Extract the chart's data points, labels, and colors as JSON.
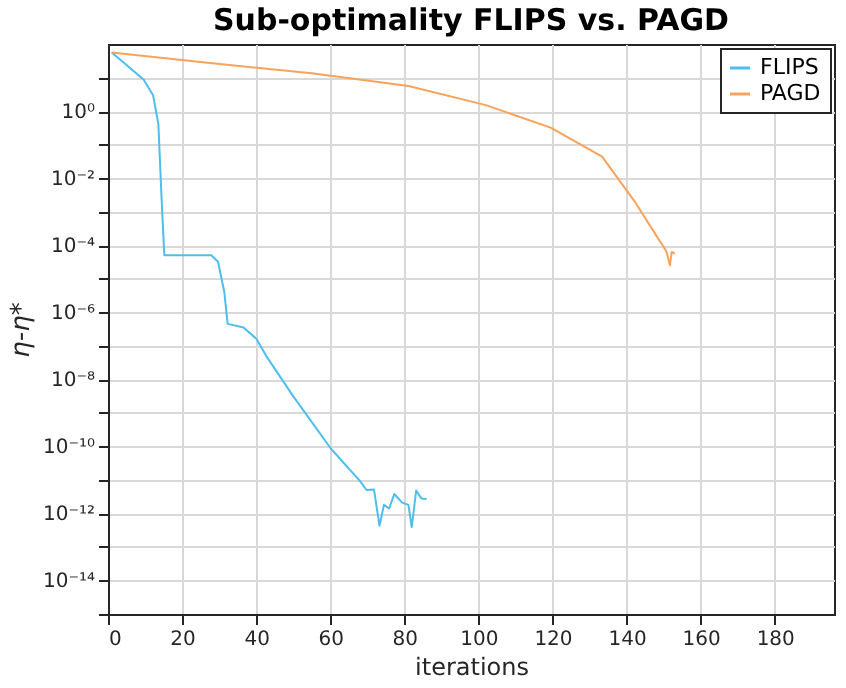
{
  "chart_data": {
    "type": "line",
    "title": "Sub-optimality FLIPS vs. PAGD",
    "xlabel": "iterations",
    "ylabel": "η-η*",
    "log": "y",
    "grid": true,
    "legend": "top right",
    "line_style": "solid",
    "marker": "none",
    "xlim": [
      0,
      196
    ],
    "xticks": [
      0,
      20,
      40,
      60,
      80,
      100,
      120,
      140,
      160,
      180
    ],
    "ylim": [
      1e-15,
      100
    ],
    "yticks": [
      {
        "value": 1e-15,
        "label": null
      },
      {
        "value": 1e-14,
        "label": "10⁻¹⁴"
      },
      {
        "value": 1e-13,
        "label": null
      },
      {
        "value": 1e-12,
        "label": "10⁻¹²"
      },
      {
        "value": 1e-11,
        "label": null
      },
      {
        "value": 1e-10,
        "label": "10⁻¹⁰"
      },
      {
        "value": 1e-09,
        "label": null
      },
      {
        "value": 1e-08,
        "label": "10⁻⁸"
      },
      {
        "value": 1e-07,
        "label": null
      },
      {
        "value": 1e-06,
        "label": "10⁻⁶"
      },
      {
        "value": 1e-05,
        "label": null
      },
      {
        "value": 0.0001,
        "label": "10⁻⁴"
      },
      {
        "value": 0.001,
        "label": null
      },
      {
        "value": 0.01,
        "label": "10⁻²"
      },
      {
        "value": 0.1,
        "label": null
      },
      {
        "value": 1,
        "label": "10⁰"
      },
      {
        "value": 10,
        "label": null
      }
    ],
    "series": [
      {
        "name": "FLIPS",
        "color": "#4dbeee",
        "x": [
          1,
          9.6,
          12.2,
          13.6,
          14.5,
          15.2,
          27.9,
          29.7,
          31.4,
          32.3,
          36.6,
          40.1,
          42.7,
          49.7,
          60.2,
          68,
          69.8,
          71.8,
          73.3,
          74.5,
          75.9,
          77.3,
          79.4,
          81.1,
          82,
          83.2,
          84.6,
          86
        ],
        "values": [
          56,
          8.7,
          2.9,
          0.4,
          0.002,
          5e-05,
          5e-05,
          3.2e-05,
          4e-06,
          4.5e-07,
          3.5e-07,
          1.6e-07,
          5e-08,
          3.5e-09,
          8.5e-11,
          9.3e-12,
          5e-12,
          5.2e-12,
          4.3e-13,
          1.8e-12,
          1.4e-12,
          3.8e-12,
          2.1e-12,
          1.8e-12,
          3.9e-13,
          4.8e-12,
          2.8e-12,
          2.7e-12
        ]
      },
      {
        "name": "PAGD",
        "color": "#f7a35c",
        "x": [
          1,
          28.8,
          55,
          81.1,
          102,
          119.5,
          133.4,
          142.2,
          148.2,
          150,
          150.8,
          151.7,
          152.2,
          153
        ],
        "values": [
          56,
          26,
          13.5,
          5.6,
          1.5,
          0.32,
          0.044,
          0.002,
          0.00018,
          9e-05,
          6.3e-05,
          2.5e-05,
          6.3e-05,
          5.6e-05
        ]
      }
    ]
  }
}
